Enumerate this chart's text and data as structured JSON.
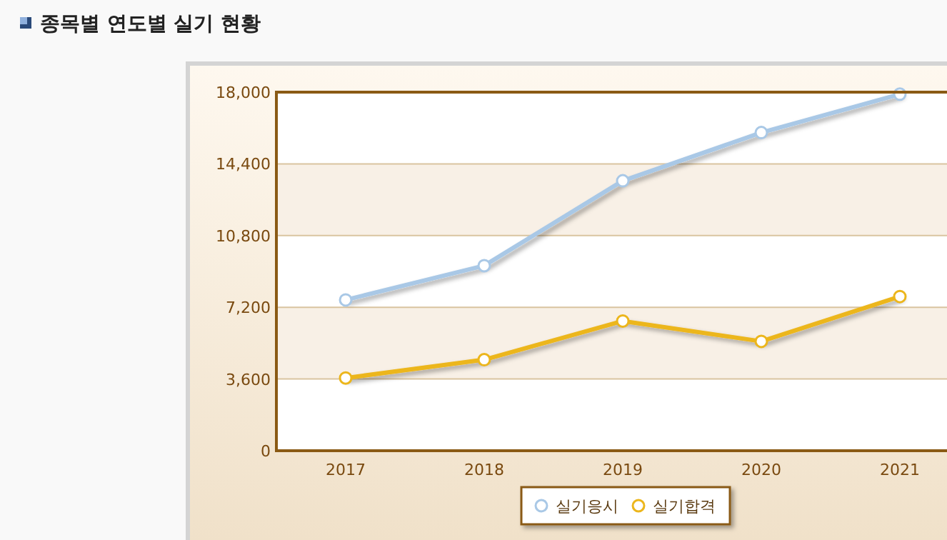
{
  "chart_data": {
    "type": "line",
    "title": "종목별 연도별 실기 현황",
    "categories": [
      "2017",
      "2018",
      "2019",
      "2020",
      "2021"
    ],
    "series": [
      {
        "name": "실기응시",
        "color": "#a9c8e6",
        "values": [
          7570,
          9290,
          13550,
          15970,
          17900
        ]
      },
      {
        "name": "실기합격",
        "color": "#ecb61c",
        "values": [
          3650,
          4570,
          6510,
          5490,
          7740
        ]
      }
    ],
    "ylim": [
      0,
      18000
    ],
    "yticks": [
      {
        "value": 0,
        "label": "0"
      },
      {
        "value": 3600,
        "label": "3,600"
      },
      {
        "value": 7200,
        "label": "7,200"
      },
      {
        "value": 10800,
        "label": "10,800"
      },
      {
        "value": 14400,
        "label": "14,400"
      },
      {
        "value": 18000,
        "label": "18,000"
      }
    ],
    "grid": "y",
    "legend": "bottom",
    "marker": "circle",
    "line_style": "solid"
  }
}
